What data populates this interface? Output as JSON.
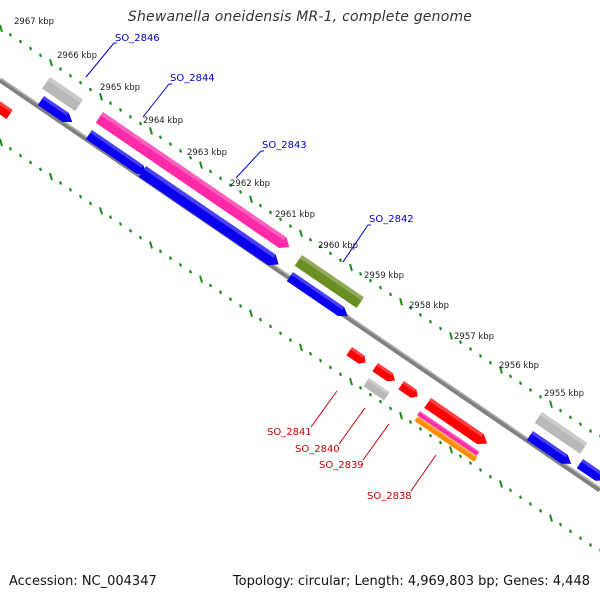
{
  "title": "Shewanella oneidensis MR-1, complete genome",
  "footer": {
    "accession": "Accession: NC_004347",
    "summary": "Topology: circular; Length: 4,969,803 bp; Genes: 4,448"
  },
  "colors": {
    "forward_cds": "#0a00f0",
    "reverse_cds": "#ff0000",
    "pink_gene": "#ff2aa8",
    "olive_gene": "#6b8e23",
    "grey_gene": "#b8b8b8",
    "backbone": "#808080",
    "tick_green": "#1a8a1a",
    "label_blue": "#0000cc",
    "label_red": "#cc0000"
  },
  "kbp_labels": [
    "2967 kbp",
    "2966 kbp",
    "2965 kbp",
    "2964 kbp",
    "2963 kbp",
    "2962 kbp",
    "2961 kbp",
    "2960 kbp",
    "2959 kbp",
    "2958 kbp",
    "2957 kbp",
    "2956 kbp",
    "2955 kbp"
  ],
  "gene_labels_top": [
    "SO_2846",
    "SO_2844",
    "SO_2843",
    "SO_2842"
  ],
  "gene_labels_bottom": [
    "SO_2841",
    "SO_2840",
    "SO_2839",
    "SO_2838"
  ]
}
